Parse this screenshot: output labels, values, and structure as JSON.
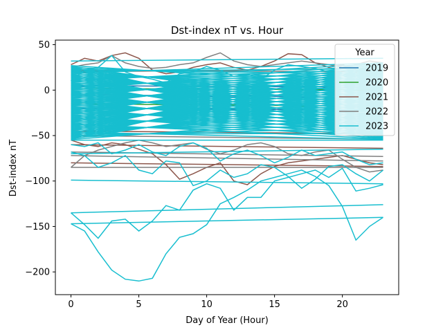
{
  "chart_data": {
    "type": "line",
    "title": "Dst-index nT vs. Hour",
    "xlabel": "Day of Year (Hour)",
    "ylabel": "Dst-index nT",
    "xlim": [
      -1.15,
      24.15
    ],
    "ylim": [
      -225,
      55
    ],
    "xticks": [
      0,
      5,
      10,
      15,
      20
    ],
    "yticks": [
      -200,
      -150,
      -100,
      -50,
      0,
      50
    ],
    "grid": false,
    "legend": {
      "title": "Year",
      "position": "top-right"
    },
    "series": [
      {
        "name": "2019",
        "color": "#1f77b4",
        "lines": [
          {
            "x": [
              0,
              23
            ],
            "y": [
              -20,
              -22
            ]
          },
          {
            "x": [
              0,
              23
            ],
            "y": [
              -5,
              -8
            ]
          },
          {
            "x": [
              0,
              23
            ],
            "y": [
              5,
              3
            ]
          }
        ]
      },
      {
        "name": "2020",
        "color": "#2ca02c",
        "lines": [
          {
            "x": [
              0,
              23
            ],
            "y": [
              -15,
              -18
            ]
          },
          {
            "x": [
              0,
              23
            ],
            "y": [
              2,
              0
            ]
          }
        ]
      },
      {
        "name": "2021",
        "color": "#8c564b",
        "lines": [
          {
            "x": [
              0,
              1,
              2,
              3,
              4,
              5,
              6,
              7,
              8,
              9,
              10,
              11,
              12,
              13,
              14,
              15,
              16,
              17,
              18,
              19,
              20,
              21,
              22,
              23
            ],
            "y": [
              28,
              35,
              32,
              38,
              41,
              35,
              22,
              18,
              20,
              25,
              28,
              30,
              25,
              22,
              26,
              32,
              40,
              39,
              30,
              25,
              28,
              22,
              18,
              20
            ]
          },
          {
            "x": [
              0,
              23
            ],
            "y": [
              -80,
              -84
            ]
          },
          {
            "x": [
              0,
              1,
              2,
              3,
              4,
              5,
              6,
              7,
              8,
              9,
              10,
              11,
              12,
              13,
              14,
              15,
              16,
              17,
              18,
              19,
              20,
              21,
              22,
              23
            ],
            "y": [
              -55,
              -60,
              -62,
              -58,
              -60,
              -65,
              -70,
              -82,
              -98,
              -92,
              -85,
              -80,
              -100,
              -104,
              -92,
              -84,
              -80,
              -78,
              -76,
              -74,
              -72,
              -76,
              -80,
              -82
            ]
          },
          {
            "x": [
              0,
              23
            ],
            "y": [
              -60,
              -64
            ]
          },
          {
            "x": [
              0,
              23
            ],
            "y": [
              20,
              24
            ]
          },
          {
            "x": [
              0,
              23
            ],
            "y": [
              -45,
              -48
            ]
          }
        ]
      },
      {
        "name": "2022",
        "color": "#7f7f7f",
        "lines": [
          {
            "x": [
              0,
              1,
              2,
              3,
              4,
              5,
              6,
              7,
              8,
              9,
              10,
              11,
              12,
              13,
              14,
              15,
              16,
              17,
              18,
              19,
              20,
              21,
              22,
              23
            ],
            "y": [
              25,
              28,
              30,
              38,
              30,
              26,
              24,
              25,
              28,
              30,
              36,
              41,
              32,
              28,
              26,
              28,
              30,
              32,
              30,
              28,
              25,
              28,
              32,
              30
            ]
          },
          {
            "x": [
              0,
              23
            ],
            "y": [
              -85,
              -85
            ]
          },
          {
            "x": [
              0,
              23
            ],
            "y": [
              -72,
              -78
            ]
          },
          {
            "x": [
              0,
              23
            ],
            "y": [
              -68,
              -73
            ]
          },
          {
            "x": [
              0,
              1,
              2,
              3,
              4,
              5,
              6,
              7,
              8,
              9,
              10,
              11,
              12,
              13,
              14,
              15,
              16,
              17,
              18,
              19,
              20,
              21,
              22,
              23
            ],
            "y": [
              -85,
              -72,
              -66,
              -62,
              -58,
              -55,
              -58,
              -62,
              -60,
              -58,
              -65,
              -70,
              -66,
              -60,
              -58,
              -62,
              -70,
              -72,
              -68,
              -66,
              -76,
              -85,
              -90,
              -88
            ]
          },
          {
            "x": [
              0,
              23
            ],
            "y": [
              -50,
              -54
            ]
          },
          {
            "x": [
              0,
              23
            ],
            "y": [
              22,
              20
            ]
          }
        ]
      },
      {
        "name": "2023",
        "color": "#17becf",
        "lines": [
          {
            "x": [
              0,
              1,
              2,
              3,
              4,
              5,
              6,
              7,
              8,
              9,
              10,
              11,
              12,
              13,
              14,
              15,
              16,
              17,
              18,
              19,
              20,
              21,
              22,
              23
            ],
            "y": [
              -135,
              -148,
              -163,
              -144,
              -142,
              -155,
              -144,
              -127,
              -132,
              -110,
              -103,
              -108,
              -132,
              -118,
              -118,
              -100,
              -96,
              -92,
              -88,
              -96,
              -86,
              -111,
              -108,
              -104
            ]
          },
          {
            "x": [
              0,
              1,
              2,
              3,
              4,
              5,
              6,
              7,
              8,
              9,
              10,
              11,
              12,
              13,
              14,
              15,
              16,
              17,
              18,
              19,
              20,
              21,
              22,
              23
            ],
            "y": [
              -147,
              -155,
              -178,
              -198,
              -208,
              -210,
              -207,
              -180,
              -162,
              -158,
              -148,
              -125,
              -118,
              -110,
              -100,
              -96,
              -92,
              -88,
              -95,
              -105,
              -128,
              -165,
              -150,
              -140
            ]
          },
          {
            "x": [
              0,
              23
            ],
            "y": [
              -147,
              -140
            ]
          },
          {
            "x": [
              0,
              23
            ],
            "y": [
              -135,
              -126
            ]
          },
          {
            "x": [
              0,
              23
            ],
            "y": [
              -99,
              -103
            ]
          },
          {
            "x": [
              0,
              1,
              2,
              3,
              4,
              5,
              6,
              7,
              8,
              9,
              10,
              11,
              12,
              13,
              14,
              15,
              16,
              17,
              18,
              19,
              20,
              21,
              22,
              23
            ],
            "y": [
              -68,
              -72,
              -85,
              -80,
              -72,
              -88,
              -92,
              -78,
              -80,
              -105,
              -100,
              -88,
              -96,
              -92,
              -82,
              -85,
              -95,
              -108,
              -98,
              -84,
              -82,
              -92,
              -100,
              -88
            ]
          },
          {
            "x": [
              0,
              1,
              2,
              3,
              4,
              5,
              6,
              7,
              8,
              9,
              10,
              11,
              12,
              13,
              14,
              15,
              16,
              17,
              18,
              19,
              20,
              21,
              22,
              23
            ],
            "y": [
              -60,
              -62,
              -58,
              -70,
              -66,
              -60,
              -68,
              -72,
              -62,
              -58,
              -64,
              -78,
              -70,
              -66,
              -72,
              -80,
              -74,
              -66,
              -72,
              -70,
              -68,
              -76,
              -82,
              -80
            ]
          },
          {
            "x": [
              0,
              23
            ],
            "y": [
              -70,
              -65
            ]
          },
          {
            "x": [
              0,
              23
            ],
            "y": [
              32,
              35
            ]
          },
          {
            "x": [
              0,
              1,
              2,
              3,
              4,
              5,
              6,
              7,
              8,
              9,
              10,
              11,
              12,
              13,
              14,
              15,
              16,
              17,
              18,
              19,
              20,
              21,
              22,
              23
            ],
            "y": [
              10,
              22,
              25,
              38,
              20,
              15,
              12,
              8,
              18,
              20,
              26,
              22,
              15,
              18,
              12,
              22,
              28,
              26,
              24,
              20,
              18,
              15,
              22,
              26
            ]
          }
        ],
        "band": {
          "x": [
            0,
            23
          ],
          "upper": [
            27,
            30
          ],
          "lower": [
            -55,
            -55
          ],
          "lines": 120
        }
      }
    ]
  }
}
